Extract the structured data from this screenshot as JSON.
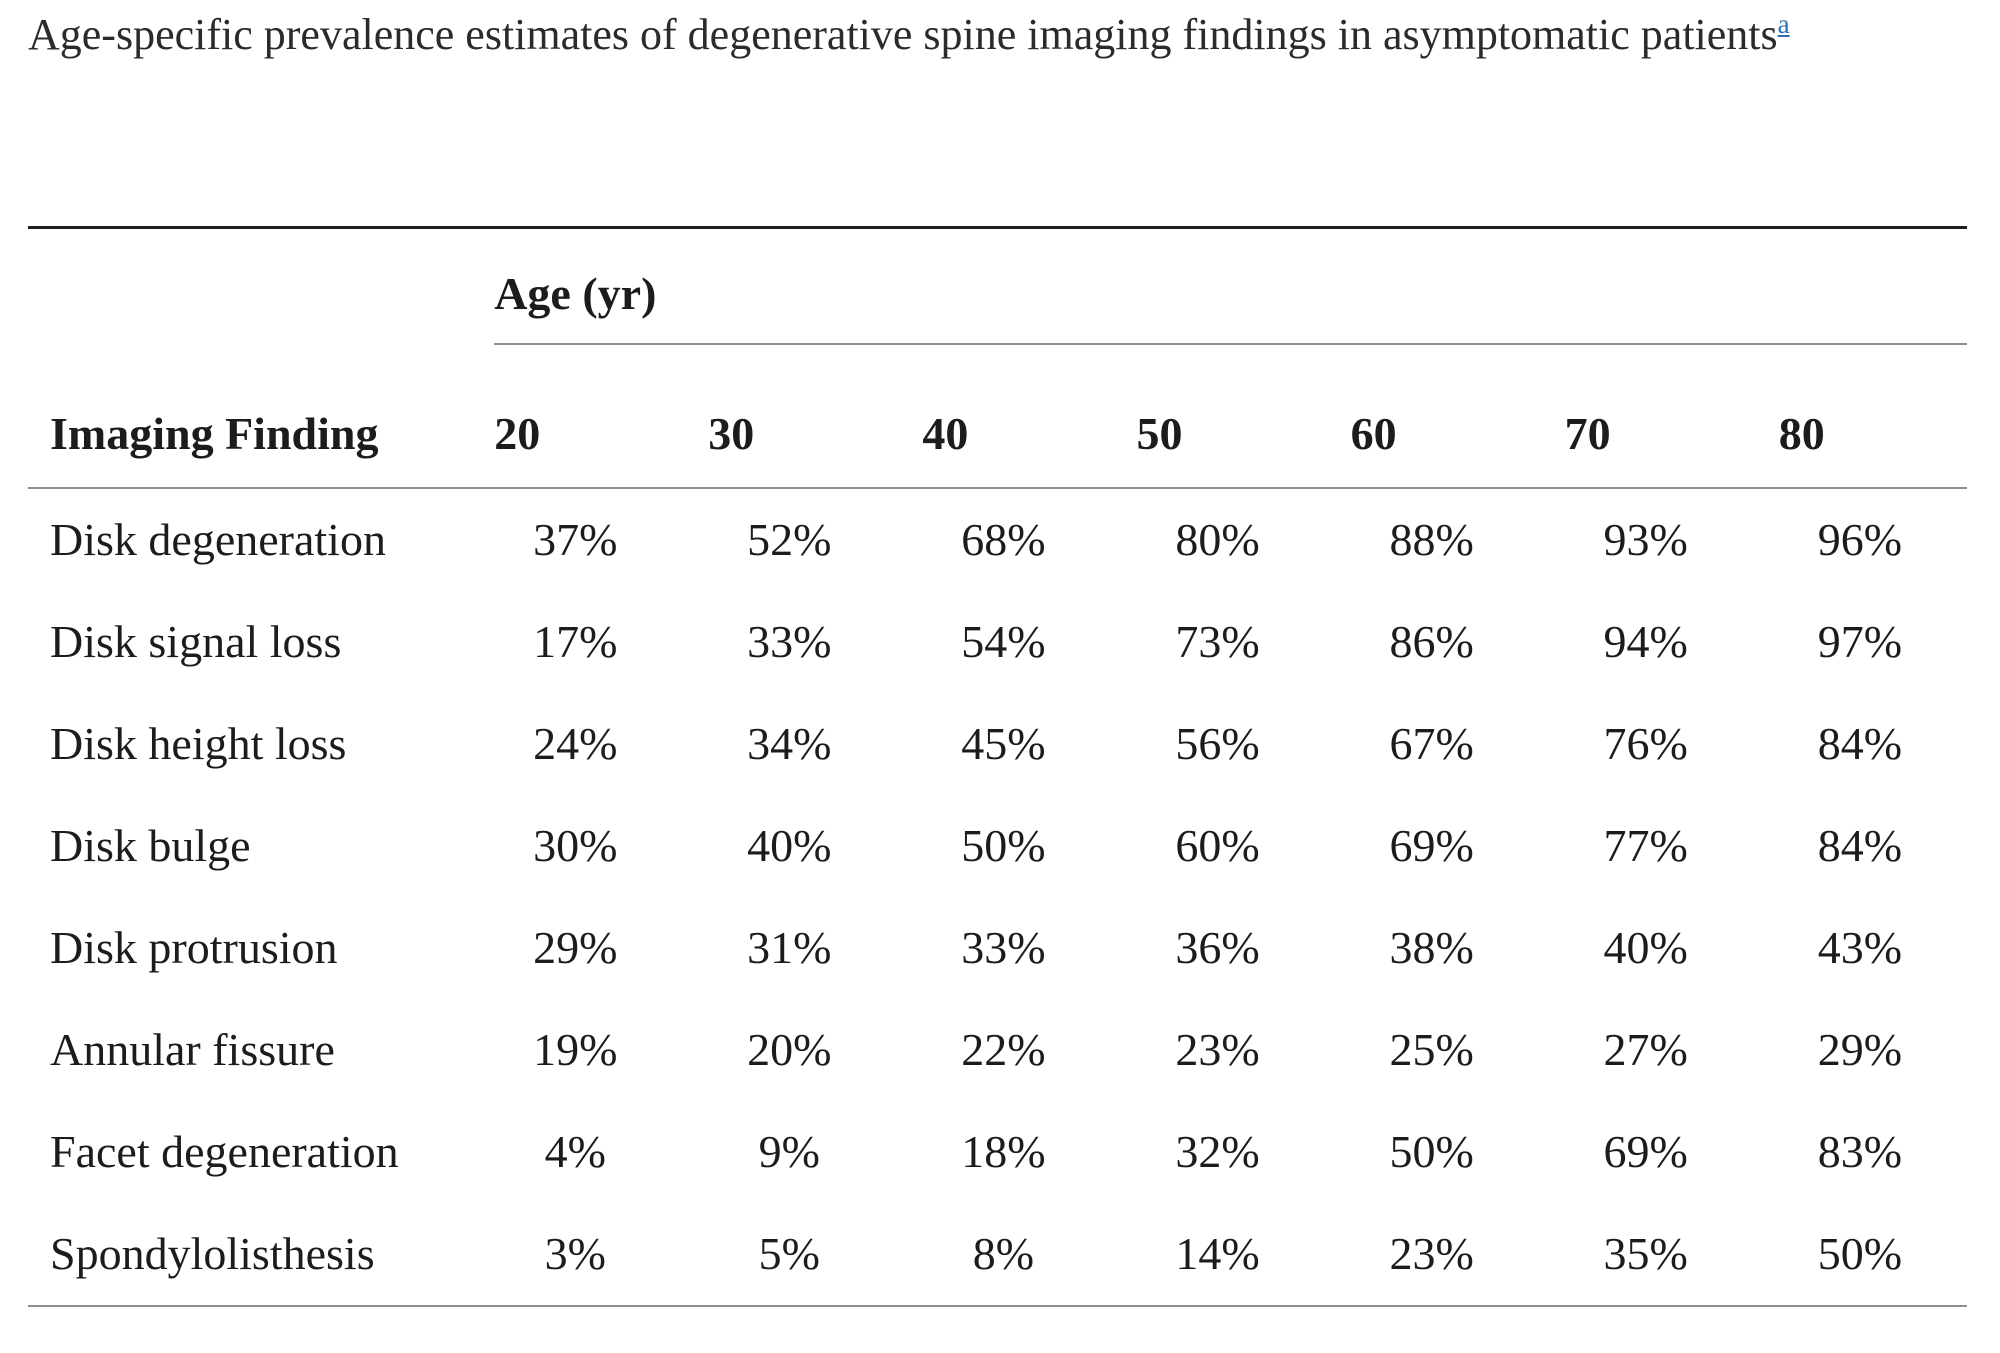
{
  "caption": {
    "text": "Age-specific prevalence estimates of degenerative spine imaging findings in asymptomatic patients",
    "footnote_marker": "a"
  },
  "table": {
    "age_group_header": "Age (yr)",
    "row_header": "Imaging Finding",
    "age_columns": [
      "20",
      "30",
      "40",
      "50",
      "60",
      "70",
      "80"
    ],
    "rows": [
      {
        "finding": "Disk degeneration",
        "values": [
          "37%",
          "52%",
          "68%",
          "80%",
          "88%",
          "93%",
          "96%"
        ]
      },
      {
        "finding": "Disk signal loss",
        "values": [
          "17%",
          "33%",
          "54%",
          "73%",
          "86%",
          "94%",
          "97%"
        ]
      },
      {
        "finding": "Disk height loss",
        "values": [
          "24%",
          "34%",
          "45%",
          "56%",
          "67%",
          "76%",
          "84%"
        ]
      },
      {
        "finding": "Disk bulge",
        "values": [
          "30%",
          "40%",
          "50%",
          "60%",
          "69%",
          "77%",
          "84%"
        ]
      },
      {
        "finding": "Disk protrusion",
        "values": [
          "29%",
          "31%",
          "33%",
          "36%",
          "38%",
          "40%",
          "43%"
        ]
      },
      {
        "finding": "Annular fissure",
        "values": [
          "19%",
          "20%",
          "22%",
          "23%",
          "25%",
          "27%",
          "29%"
        ]
      },
      {
        "finding": "Facet degeneration",
        "values": [
          "4%",
          "9%",
          "18%",
          "32%",
          "50%",
          "69%",
          "83%"
        ]
      },
      {
        "finding": "Spondylolisthesis",
        "values": [
          "3%",
          "5%",
          "8%",
          "14%",
          "23%",
          "35%",
          "50%"
        ]
      }
    ]
  },
  "colors": {
    "text": "#1c1c1c",
    "caption_text": "#2b2b2b",
    "footnote_link_blue": "#2a6db6",
    "rule_dark": "#1f1f1f",
    "rule_light": "#8e8e8e",
    "background": "#ffffff"
  }
}
